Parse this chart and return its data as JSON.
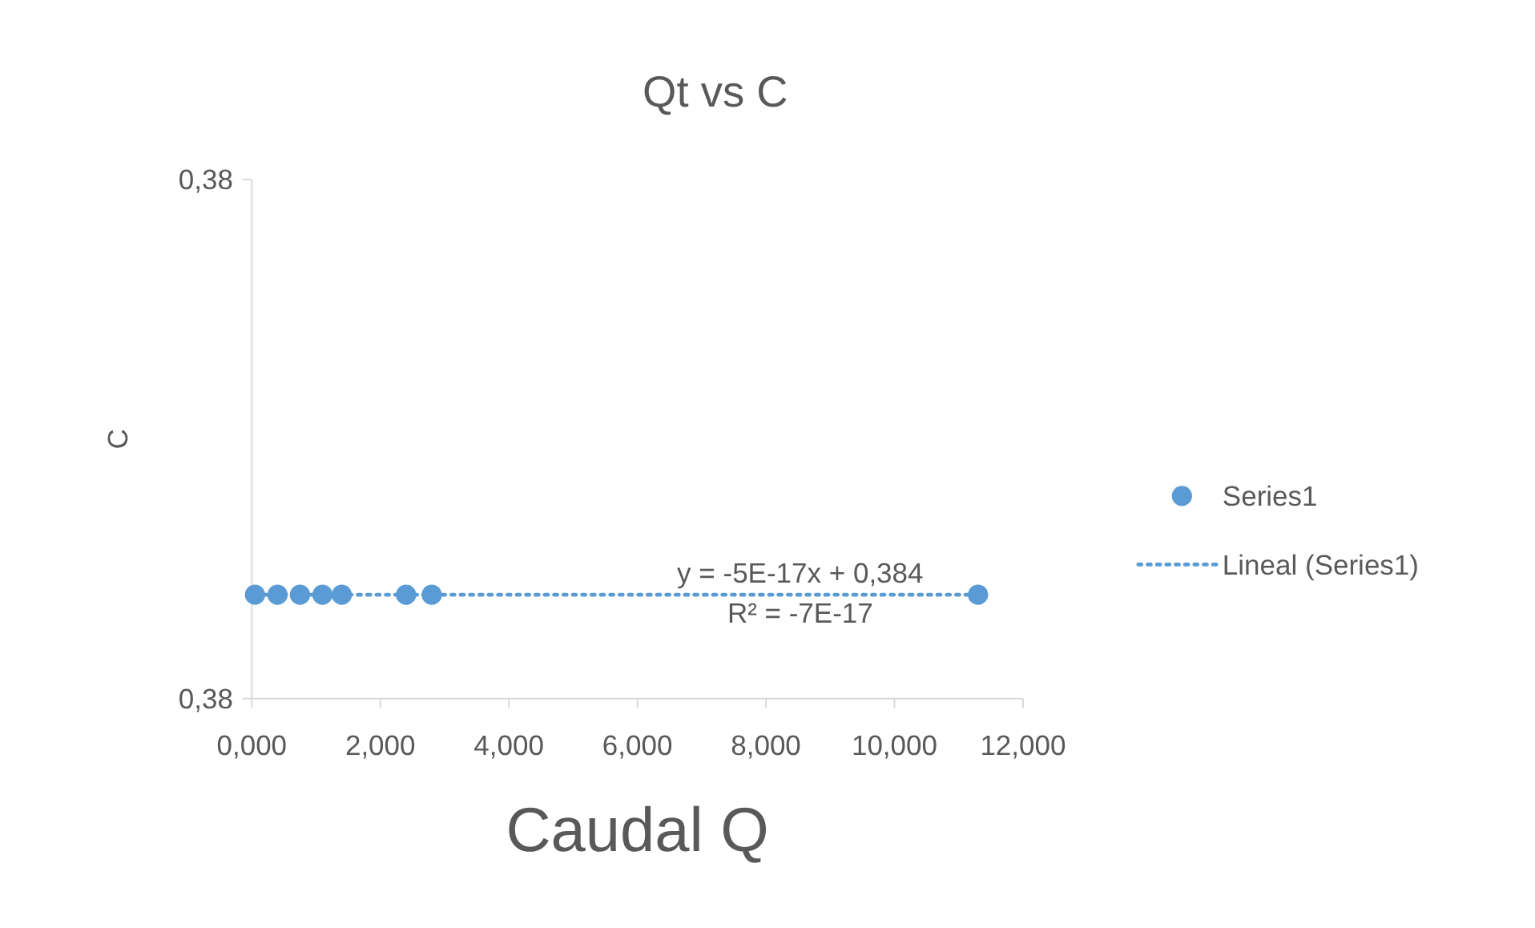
{
  "chart_data": {
    "type": "scatter",
    "title": "Qt vs C",
    "xlabel": "Caudal Q",
    "ylabel": "C",
    "xlim": [
      0,
      12
    ],
    "xticks": [
      {
        "value": 0,
        "label": "0,000"
      },
      {
        "value": 2,
        "label": "2,000"
      },
      {
        "value": 4,
        "label": "4,000"
      },
      {
        "value": 6,
        "label": "6,000"
      },
      {
        "value": 8,
        "label": "8,000"
      },
      {
        "value": 10,
        "label": "10,000"
      },
      {
        "value": 12,
        "label": "12,000"
      }
    ],
    "ylim": [
      0.38398,
      0.38408
    ],
    "yticks": [
      {
        "value": 0.38398,
        "label": "0,38"
      },
      {
        "value": 0.38408,
        "label": "0,38"
      }
    ],
    "grid": false,
    "legend": "right",
    "series": [
      {
        "name": "Series1",
        "color": "#5b9bd5",
        "marker": "circle",
        "x": [
          0.05,
          0.4,
          0.75,
          1.1,
          1.4,
          2.4,
          2.8,
          11.3
        ],
        "values": [
          0.384,
          0.384,
          0.384,
          0.384,
          0.384,
          0.384,
          0.384,
          0.384
        ]
      },
      {
        "name": "Lineal (Series1)",
        "type": "line",
        "color": "#5b9bd5",
        "line_style": "dotted",
        "x": [
          0.05,
          11.3
        ],
        "values": [
          0.384,
          0.384
        ]
      }
    ],
    "annotations": [
      "y = -5E-17x + 0,384",
      "R² = -7E-17"
    ]
  }
}
